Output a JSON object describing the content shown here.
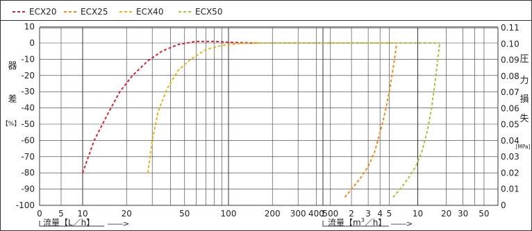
{
  "chart_data": {
    "type": "line",
    "legend_position": "top-left",
    "grid": true,
    "series": [
      {
        "name": "ECX20",
        "color": "#d6222e",
        "axis": "error",
        "points": [
          [
            10,
            -80
          ],
          [
            12,
            -60
          ],
          [
            15,
            -43
          ],
          [
            18,
            -30
          ],
          [
            22,
            -20
          ],
          [
            28,
            -11
          ],
          [
            35,
            -5
          ],
          [
            45,
            -1
          ],
          [
            60,
            1
          ],
          [
            80,
            1
          ],
          [
            110,
            0.3
          ],
          [
            150,
            0
          ]
        ]
      },
      {
        "name": "ECX25",
        "color": "#ef8a17",
        "axis": "pressure",
        "points": [
          [
            1.7,
            0.005
          ],
          [
            2,
            0.01
          ],
          [
            2.5,
            0.017
          ],
          [
            3,
            0.024
          ],
          [
            3.5,
            0.033
          ],
          [
            4,
            0.045
          ],
          [
            4.5,
            0.057
          ],
          [
            5,
            0.07
          ],
          [
            5.5,
            0.085
          ],
          [
            6,
            0.1
          ]
        ]
      },
      {
        "name": "ECX40",
        "color": "#e6b219",
        "axis": "error",
        "points": [
          [
            28,
            -80
          ],
          [
            30,
            -60
          ],
          [
            33,
            -42
          ],
          [
            38,
            -28
          ],
          [
            45,
            -17
          ],
          [
            55,
            -10
          ],
          [
            70,
            -4
          ],
          [
            90,
            -1.5
          ],
          [
            120,
            -0.3
          ],
          [
            160,
            0
          ]
        ]
      },
      {
        "name": "ECX50",
        "color": "#a8c23a",
        "axis": "pressure",
        "points": [
          [
            5.5,
            0.005
          ],
          [
            6.5,
            0.01
          ],
          [
            8,
            0.017
          ],
          [
            9.5,
            0.024
          ],
          [
            11,
            0.033
          ],
          [
            12.5,
            0.045
          ],
          [
            14,
            0.06
          ],
          [
            15.5,
            0.08
          ],
          [
            17,
            0.1
          ]
        ]
      }
    ],
    "flat_lines": [
      {
        "series": "ECX20",
        "x_from": 150,
        "x_to": 5.5,
        "y": 0
      },
      {
        "series": "ECX25",
        "x_from": 150,
        "x_to": 6,
        "y": 0
      },
      {
        "series": "ECX40",
        "x_from": 160,
        "x_to": 10,
        "y": 0
      },
      {
        "series": "ECX50",
        "x_from": 160,
        "x_to": 17,
        "y": 0
      }
    ],
    "left_axis": {
      "label_chars": [
        "器",
        "差"
      ],
      "unit": "【%】",
      "ylim": [
        -100,
        10
      ],
      "ticks": [
        10,
        0,
        -10,
        -20,
        -30,
        -40,
        -50,
        -60,
        -70,
        -80,
        -90,
        -100
      ]
    },
    "right_axis": {
      "label_chars": [
        "圧",
        "力",
        "損",
        "失"
      ],
      "unit": "[MPa]",
      "ylim": [
        0,
        0.11
      ],
      "ticks": [
        "0.11",
        "0.10",
        "0.09",
        "0.08",
        "0.07",
        "0.06",
        "0.05",
        "0.04",
        "0.03",
        "0.02",
        "0.01",
        "0"
      ]
    },
    "x_axis_lh": {
      "label": "流量【L／h】",
      "tick_labels": [
        "0",
        "5",
        "10",
        "20",
        "50",
        "100",
        "200",
        "300",
        "400",
        "500"
      ],
      "tick_values": [
        0,
        5,
        10,
        20,
        50,
        100,
        200,
        300,
        400,
        500
      ]
    },
    "x_axis_m3h": {
      "label_prefix": "流量【m",
      "label_sup": "3",
      "label_suffix": "／h】",
      "tick_labels": [
        "1",
        "2",
        "3",
        "4",
        "5",
        "10",
        "20",
        "30",
        "50"
      ],
      "tick_values": [
        1,
        2,
        3,
        4,
        5,
        10,
        20,
        30,
        50
      ]
    },
    "arrow": "――>"
  }
}
